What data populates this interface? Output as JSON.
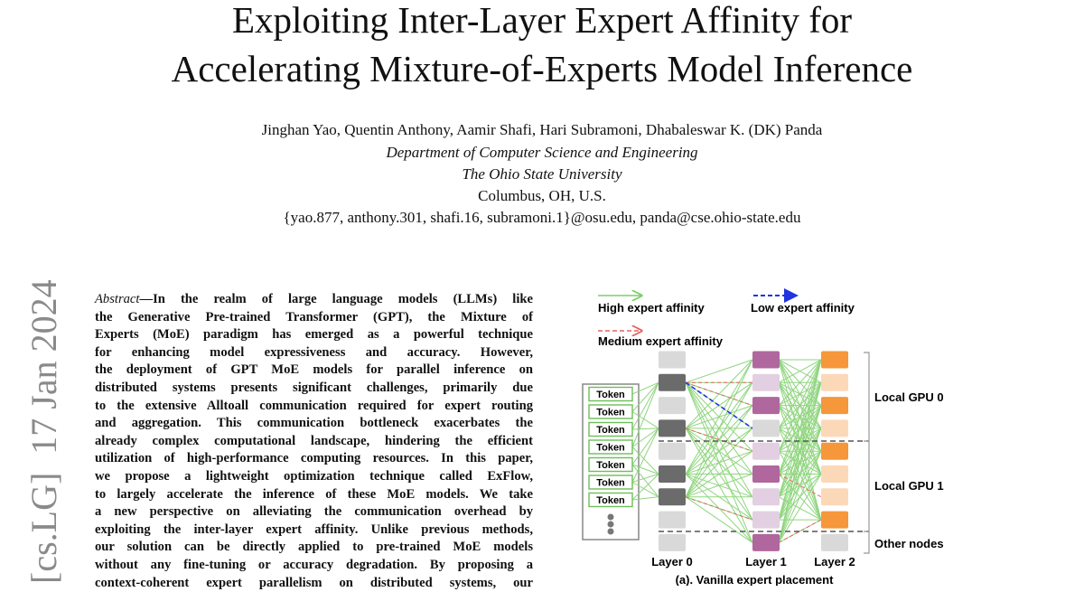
{
  "header": {
    "title_lines": [
      "Exploiting Inter-Layer Expert Affinity for",
      "Accelerating Mixture-of-Experts Model Inference"
    ],
    "authors": "Jinghan Yao, Quentin Anthony, Aamir Shafi, Hari Subramoni, Dhabaleswar K. (DK) Panda",
    "department": "Department of Computer Science and Engineering",
    "university": "The Ohio State University",
    "location": "Columbus, OH, U.S.",
    "emails": "{yao.877, anthony.301, shafi.16, subramoni.1}@osu.edu, panda@cse.ohio-state.edu"
  },
  "stamp": "[cs.LG]  17 Jan 2024",
  "abstract": {
    "label": "Abstract",
    "lines": [
      "—In the realm of large language models (LLMs) like",
      "the Generative Pre-trained Transformer (GPT), the Mixture of",
      "Experts (MoE) paradigm has emerged as a powerful technique",
      "for enhancing model expressiveness and accuracy. However,",
      "the deployment of GPT MoE models for parallel inference on",
      "distributed systems presents significant challenges, primarily due",
      "to the extensive Alltoall communication required for expert routing",
      "and aggregation. This communication bottleneck exacerbates the",
      "already complex computational landscape, hindering the efficient",
      "utilization of high-performance computing resources. In this paper,",
      "we propose a lightweight optimization technique called ExFlow,",
      "to largely accelerate the inference of these MoE models. We take",
      "a new perspective on alleviating the communication overhead by",
      "exploiting the inter-layer expert affinity. Unlike previous methods,",
      "our solution can be directly applied to pre-trained MoE models",
      "without any fine-tuning or accuracy degradation. By proposing a",
      "context-coherent expert parallelism on distributed systems, our"
    ]
  },
  "figure": {
    "legend": {
      "high": "High expert affinity",
      "low": "Low expert affinity",
      "medium": "Medium expert affinity"
    },
    "tokens": [
      "Token",
      "Token",
      "Token",
      "Token",
      "Token",
      "Token",
      "Token"
    ],
    "layers": [
      "Layer 0",
      "Layer 1",
      "Layer 2"
    ],
    "groups": [
      "Local GPU 0",
      "Local GPU 1",
      "Other nodes"
    ],
    "caption": "(a). Vanilla expert placement"
  }
}
